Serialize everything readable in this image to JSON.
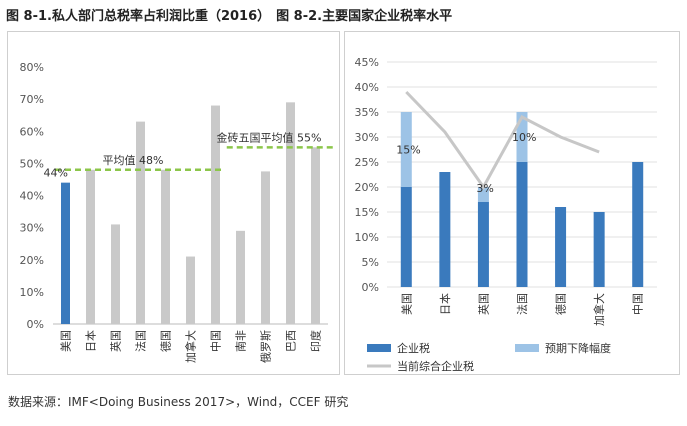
{
  "title": {
    "left": "图 8-1.私人部门总税率占利润比重（2016）",
    "right": "图 8-2.主要国家企业税率水平"
  },
  "source": "数据来源：IMF<Doing Business 2017>，Wind，CCEF 研究",
  "colors": {
    "blue": "#3a7abd",
    "light_blue": "#9dc3e6",
    "gray": "#c9c9c9",
    "gray_line": "#c7c7c7",
    "dash_green": "#8cc64a"
  },
  "chart_data": [
    {
      "type": "bar",
      "title": "私人部门总税率占利润比重（2016）",
      "categories": [
        "美国",
        "日本",
        "英国",
        "法国",
        "德国",
        "加拿大",
        "中国",
        "南非",
        "俄罗斯",
        "巴西",
        "印度"
      ],
      "values": [
        44,
        48,
        31,
        63,
        48,
        21,
        68,
        29,
        47.5,
        69,
        55
      ],
      "highlight": [
        "美国"
      ],
      "ylim": [
        0,
        80
      ],
      "yticks": [
        "0%",
        "10%",
        "20%",
        "30%",
        "40%",
        "50%",
        "60%",
        "70%",
        "80%"
      ],
      "reference_lines": [
        {
          "label": "平均值 48%",
          "value": 48,
          "from": "美国",
          "to": "中国"
        },
        {
          "label": "金砖五国平均值 55%",
          "value": 55,
          "from": "中国",
          "to": "印度"
        }
      ],
      "annotations": [
        {
          "category": "美国",
          "text": "44%"
        }
      ]
    },
    {
      "type": "bar",
      "title": "主要国家企业税率水平",
      "categories": [
        "美国",
        "日本",
        "英国",
        "法国",
        "德国",
        "加拿大",
        "中国"
      ],
      "series": [
        {
          "name": "企业税",
          "kind": "bar",
          "values": [
            20,
            23,
            17,
            25,
            16,
            15,
            25
          ]
        },
        {
          "name": "预期下降幅度",
          "kind": "stacked-bar",
          "values": [
            15,
            0,
            3,
            10,
            0,
            0,
            0
          ]
        },
        {
          "name": "当前综合企业税",
          "kind": "line",
          "values": [
            39,
            31,
            20,
            34,
            30,
            27,
            null
          ]
        }
      ],
      "ylim": [
        0,
        45
      ],
      "yticks": [
        "0%",
        "5%",
        "10%",
        "15%",
        "20%",
        "25%",
        "30%",
        "35%",
        "40%",
        "45%"
      ],
      "data_labels": [
        {
          "category": "美国",
          "text": "15%"
        },
        {
          "category": "英国",
          "text": "3%"
        },
        {
          "category": "法国",
          "text": "10%"
        }
      ],
      "legend": {
        "placement": "bottom"
      }
    }
  ]
}
